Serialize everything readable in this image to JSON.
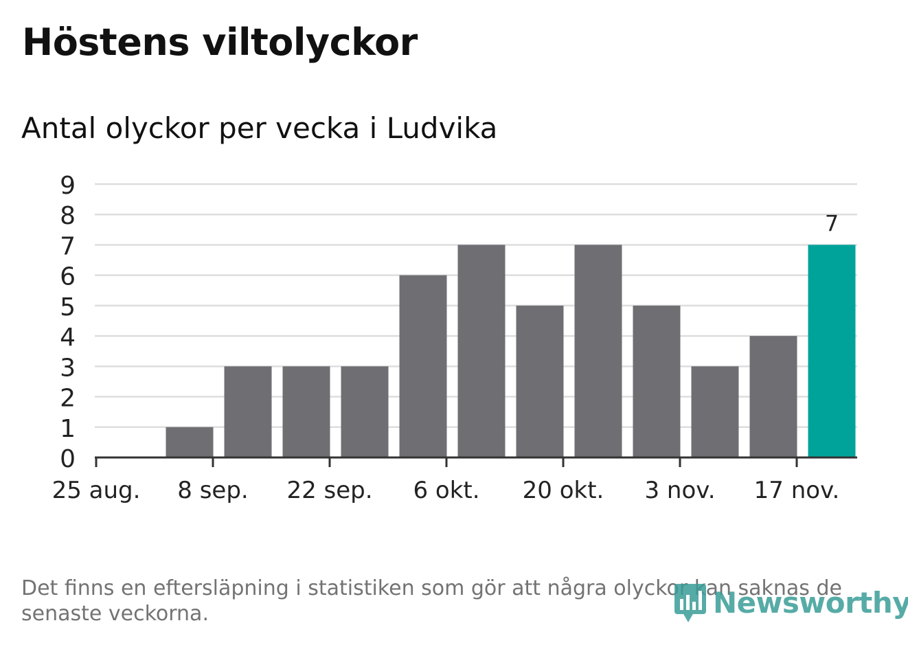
{
  "title": "Höstens viltolyckor",
  "subtitle": "Antal olyckor per vecka i Ludvika",
  "footnote": "Det finns en eftersläpning i statistiken som gör att några olyckor kan saknas de senaste veckorna.",
  "logo": {
    "text": "Newsworthy",
    "icon": "newsworthy-logo-icon",
    "color": "#3a9d97"
  },
  "chart_data": {
    "type": "bar",
    "x": [
      "25 aug.",
      "1 sep.",
      "8 sep.",
      "15 sep.",
      "22 sep.",
      "29 sep.",
      "6 okt.",
      "13 okt.",
      "20 okt.",
      "27 okt.",
      "3 nov.",
      "10 nov.",
      "17 nov."
    ],
    "values": [
      0,
      1,
      3,
      3,
      3,
      6,
      7,
      5,
      7,
      5,
      3,
      4,
      7
    ],
    "x_tick_labels": [
      "25 aug.",
      "8 sep.",
      "22 sep.",
      "6 okt.",
      "20 okt.",
      "3 nov.",
      "17 nov."
    ],
    "ylim": [
      0,
      9
    ],
    "y_ticks": [
      0,
      1,
      2,
      3,
      4,
      5,
      6,
      7,
      8,
      9
    ],
    "grid": true,
    "highlight_index": 12,
    "data_labels": [
      {
        "index": 12,
        "text": "7"
      }
    ],
    "colors": {
      "bar": "#6f6e73",
      "highlight": "#00a39a",
      "grid": "#dddddd",
      "axis": "#333333"
    }
  }
}
